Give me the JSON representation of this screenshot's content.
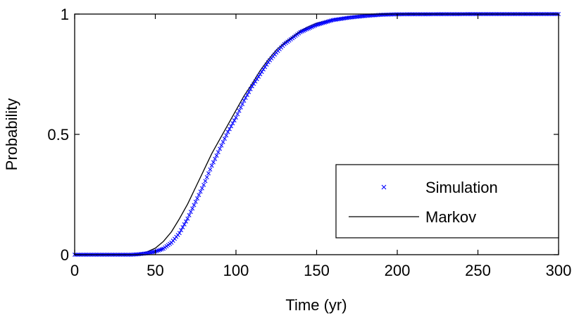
{
  "chart_data": {
    "type": "line",
    "title": "",
    "xlabel": "Time (yr)",
    "ylabel": "Probability",
    "xlim": [
      0,
      300
    ],
    "ylim": [
      0,
      1
    ],
    "xticks": [
      0,
      50,
      100,
      150,
      200,
      250,
      300
    ],
    "xtick_labels": [
      "0",
      "50",
      "100",
      "150",
      "200",
      "250",
      "300"
    ],
    "yticks": [
      0,
      0.5,
      1
    ],
    "ytick_labels": [
      "0",
      "0.5",
      "1"
    ],
    "grid": false,
    "legend_position": "lower-right",
    "series": [
      {
        "name": "Simulation",
        "style": "markers-x",
        "color": "#0000ff",
        "x": [
          0,
          20,
          35,
          40,
          45,
          50,
          55,
          60,
          65,
          70,
          75,
          80,
          85,
          90,
          95,
          100,
          105,
          110,
          115,
          120,
          125,
          130,
          135,
          140,
          145,
          150,
          155,
          160,
          170,
          180,
          190,
          200,
          250,
          300
        ],
        "y": [
          0,
          0,
          0,
          0.002,
          0.006,
          0.013,
          0.025,
          0.05,
          0.09,
          0.15,
          0.22,
          0.29,
          0.37,
          0.44,
          0.51,
          0.57,
          0.64,
          0.7,
          0.75,
          0.8,
          0.84,
          0.875,
          0.9,
          0.925,
          0.94,
          0.955,
          0.965,
          0.975,
          0.985,
          0.992,
          0.997,
          0.999,
          1,
          1
        ]
      },
      {
        "name": "Markov",
        "style": "line",
        "color": "#000000",
        "x": [
          0,
          20,
          35,
          40,
          45,
          50,
          55,
          60,
          65,
          70,
          75,
          80,
          85,
          90,
          95,
          100,
          105,
          110,
          115,
          120,
          125,
          130,
          135,
          140,
          145,
          150,
          160,
          170,
          180,
          190,
          200,
          250,
          300
        ],
        "y": [
          0,
          0,
          0,
          0.004,
          0.012,
          0.027,
          0.055,
          0.095,
          0.15,
          0.21,
          0.28,
          0.35,
          0.42,
          0.48,
          0.54,
          0.6,
          0.66,
          0.71,
          0.765,
          0.81,
          0.85,
          0.88,
          0.905,
          0.93,
          0.948,
          0.962,
          0.978,
          0.988,
          0.995,
          0.998,
          1,
          1,
          1
        ]
      }
    ]
  }
}
